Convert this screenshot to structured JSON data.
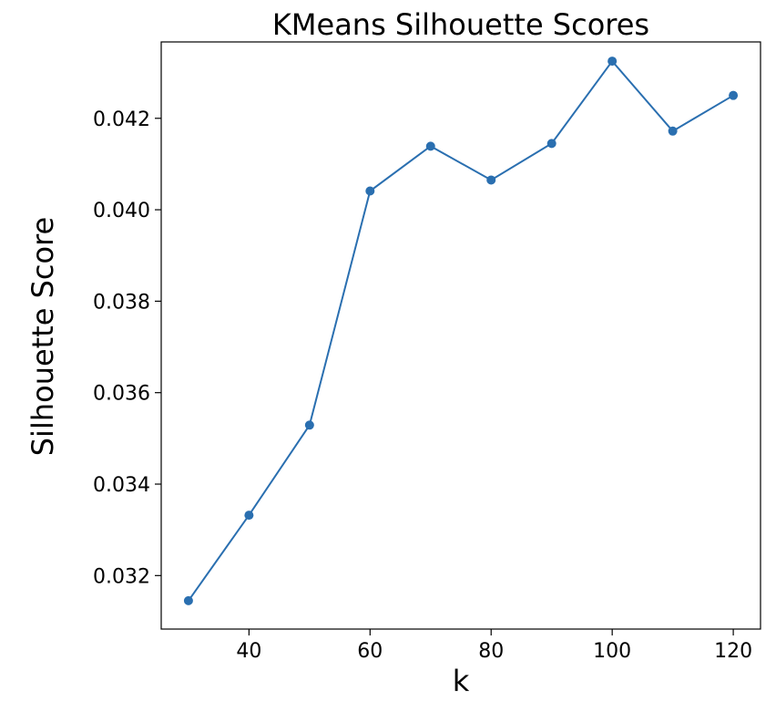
{
  "chart_data": {
    "type": "line",
    "title": "KMeans Silhouette Scores",
    "xlabel": "k",
    "ylabel": "Silhouette Score",
    "x": [
      30,
      40,
      50,
      60,
      70,
      80,
      90,
      100,
      110,
      120
    ],
    "series": [
      {
        "values": [
          0.03145,
          0.03332,
          0.03529,
          0.04041,
          0.04139,
          0.04065,
          0.04145,
          0.04325,
          0.04172,
          0.0425
        ],
        "color": "#2a6fb0",
        "marker": "circle"
      }
    ],
    "xlim": [
      25.5,
      124.5
    ],
    "ylim": [
      0.03083,
      0.04367
    ],
    "xticks": [
      40,
      60,
      80,
      100,
      120
    ],
    "xtick_labels": [
      "40",
      "60",
      "80",
      "100",
      "120"
    ],
    "yticks": [
      0.032,
      0.034,
      0.036,
      0.038,
      0.04,
      0.042
    ],
    "ytick_labels": [
      "0.032",
      "0.034",
      "0.036",
      "0.038",
      "0.040",
      "0.042"
    ],
    "grid": false,
    "legend": "none"
  }
}
